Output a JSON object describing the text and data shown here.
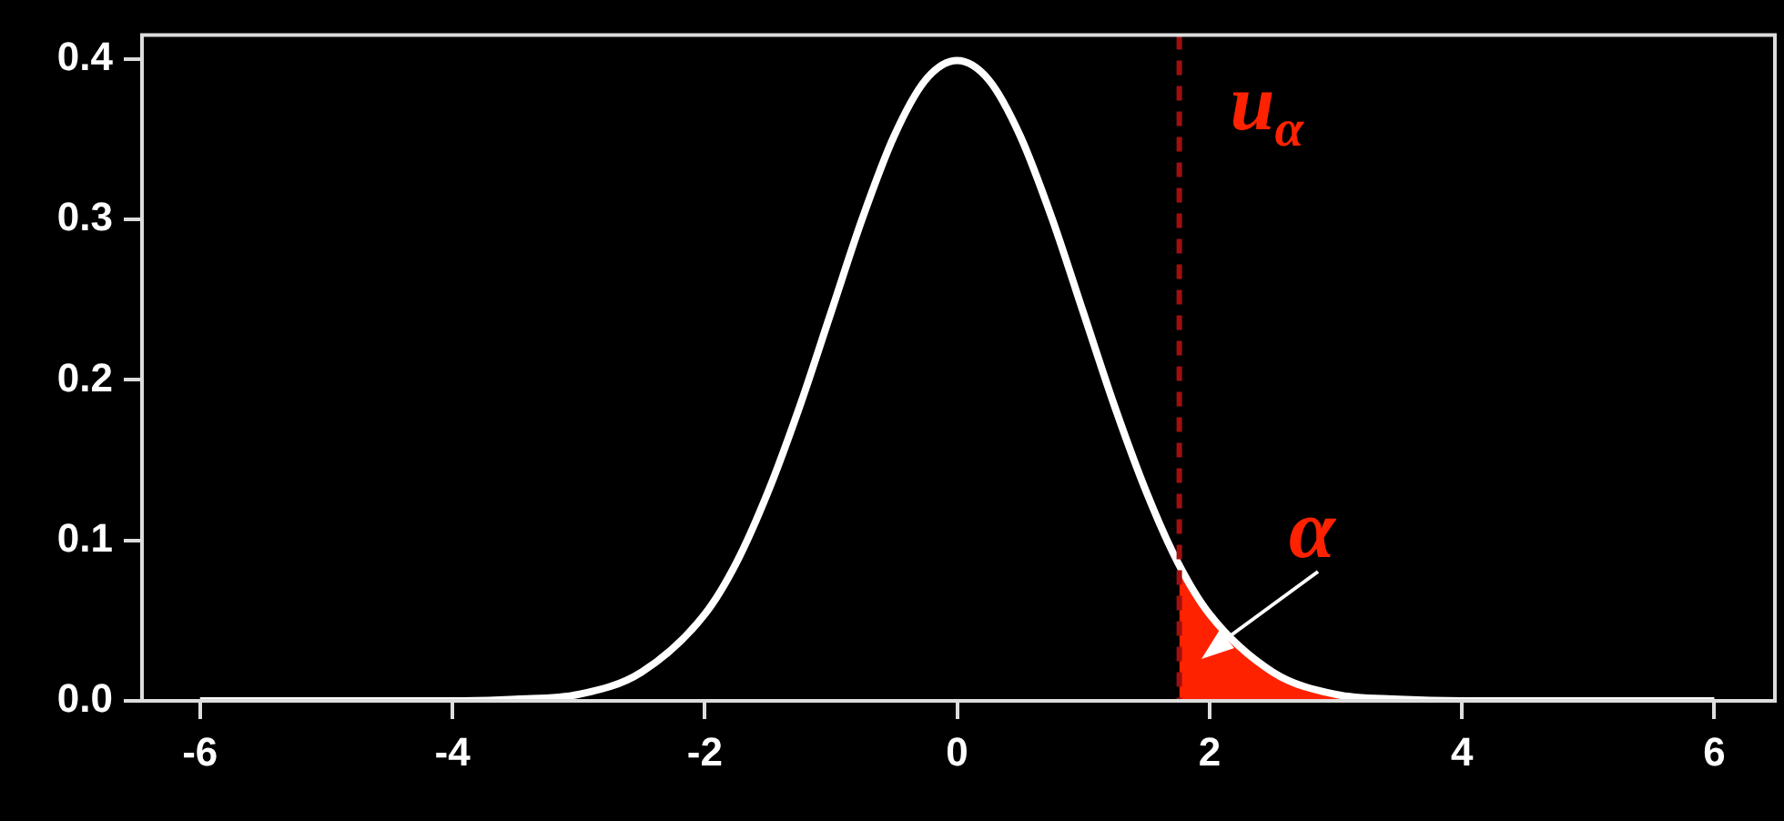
{
  "chart_data": {
    "type": "line",
    "xlim": [
      -6.46,
      6.48
    ],
    "ylim": [
      0,
      0.415
    ],
    "xticks": [
      -6,
      -4,
      -2,
      0,
      2,
      4,
      6
    ],
    "yticks": [
      {
        "value": 0,
        "label": "0.0"
      },
      {
        "value": 0.1,
        "label": "0.1"
      },
      {
        "value": 0.2,
        "label": "0.2"
      },
      {
        "value": 0.3,
        "label": "0.3"
      },
      {
        "value": 0.4,
        "label": "0.4"
      }
    ],
    "grid": false,
    "legend": false,
    "marker": "none",
    "line_style": "solid",
    "series": [
      {
        "type": "line",
        "color": "#ffffff",
        "x": [
          -6,
          -5,
          -4,
          -3.5,
          -3,
          -2.5,
          -2,
          -1.75,
          -1.5,
          -1.25,
          -1,
          -0.75,
          -0.5,
          -0.25,
          0,
          0.25,
          0.5,
          0.75,
          1,
          1.25,
          1.5,
          1.75,
          2,
          2.5,
          3,
          3.5,
          4,
          5,
          6
        ],
        "values": [
          0,
          0,
          0,
          0.001,
          0.004,
          0.018,
          0.054,
          0.086,
          0.13,
          0.183,
          0.242,
          0.301,
          0.352,
          0.387,
          0.399,
          0.387,
          0.352,
          0.301,
          0.242,
          0.183,
          0.13,
          0.086,
          0.054,
          0.018,
          0.004,
          0.001,
          0,
          0,
          0
        ]
      },
      {
        "type": "area",
        "color": "#ff2200",
        "x": [
          1.76,
          2,
          2.25,
          2.5,
          2.75,
          3,
          3.5,
          4,
          5,
          6
        ],
        "values": [
          0.085,
          0.054,
          0.032,
          0.018,
          0.009,
          0.004,
          0.001,
          0,
          0,
          0
        ]
      }
    ],
    "ref_lines": [
      {
        "axis": "x",
        "value": 1.76,
        "label": "u$_{α}$",
        "color": "#a01010",
        "line_style": "dashed"
      }
    ],
    "annotations": [
      "α"
    ]
  }
}
